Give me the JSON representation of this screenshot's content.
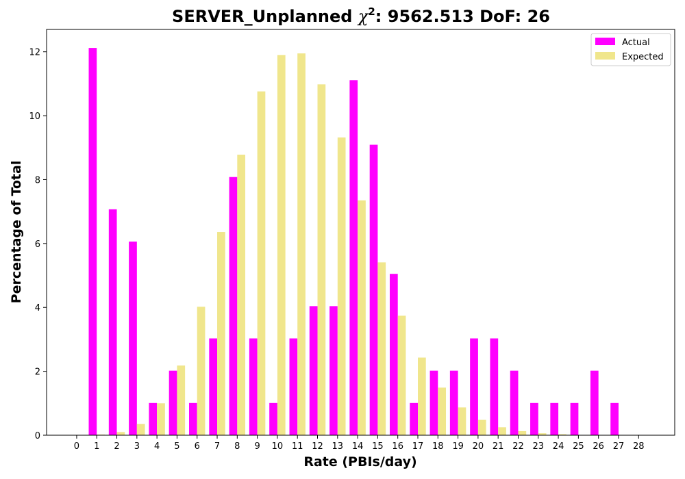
{
  "chart_data": {
    "type": "bar",
    "title_main": "SERVER_Unplanned ",
    "title_chi": "χ",
    "title_sup": "2",
    "title_rest": ": 9562.513 DoF: 26",
    "xlabel": "Rate (PBIs/day)",
    "ylabel": "Percentage of Total",
    "x_ticks": [
      "0",
      "1",
      "2",
      "3",
      "4",
      "5",
      "6",
      "7",
      "8",
      "9",
      "10",
      "11",
      "12",
      "13",
      "14",
      "15",
      "16",
      "17",
      "18",
      "19",
      "20",
      "21",
      "22",
      "23",
      "24",
      "25",
      "26",
      "27",
      "28"
    ],
    "y_ticks": [
      "0",
      "2",
      "4",
      "6",
      "8",
      "10",
      "12"
    ],
    "ylim": [
      0,
      12.7
    ],
    "xlim": [
      -1.5,
      29.8
    ],
    "grid": false,
    "legend_placement": "top-right",
    "series": [
      {
        "name": "Actual",
        "color": "#ff00ff",
        "x": [
          0,
          1,
          2,
          3,
          4,
          5,
          6,
          7,
          8,
          9,
          10,
          11,
          12,
          13,
          14,
          15,
          16,
          17,
          18,
          19,
          20,
          21,
          22,
          23,
          24,
          25,
          26,
          27,
          28
        ],
        "values": [
          0,
          12.12,
          7.07,
          6.06,
          1.01,
          2.02,
          1.01,
          3.03,
          8.08,
          3.03,
          1.01,
          3.03,
          4.04,
          4.04,
          11.11,
          9.09,
          5.05,
          1.01,
          2.02,
          2.02,
          3.03,
          3.03,
          2.02,
          1.01,
          1.01,
          1.01,
          2.02,
          1.01,
          0
        ]
      },
      {
        "name": "Expected",
        "color": "#f0e68c",
        "x": [
          0,
          1,
          2,
          3,
          4,
          5,
          6,
          7,
          8,
          9,
          10,
          11,
          12,
          13,
          14,
          15,
          16,
          17,
          18,
          19,
          20,
          21,
          22,
          23,
          24,
          25,
          26,
          27,
          28
        ],
        "values": [
          0,
          0.02,
          0.1,
          0.35,
          1.0,
          2.18,
          4.02,
          6.36,
          8.78,
          10.76,
          11.9,
          11.95,
          10.98,
          9.32,
          7.35,
          5.41,
          3.74,
          2.43,
          1.49,
          0.87,
          0.48,
          0.25,
          0.13,
          0.06,
          0.03,
          0.01,
          0.005,
          0.002,
          0.001
        ]
      }
    ]
  }
}
